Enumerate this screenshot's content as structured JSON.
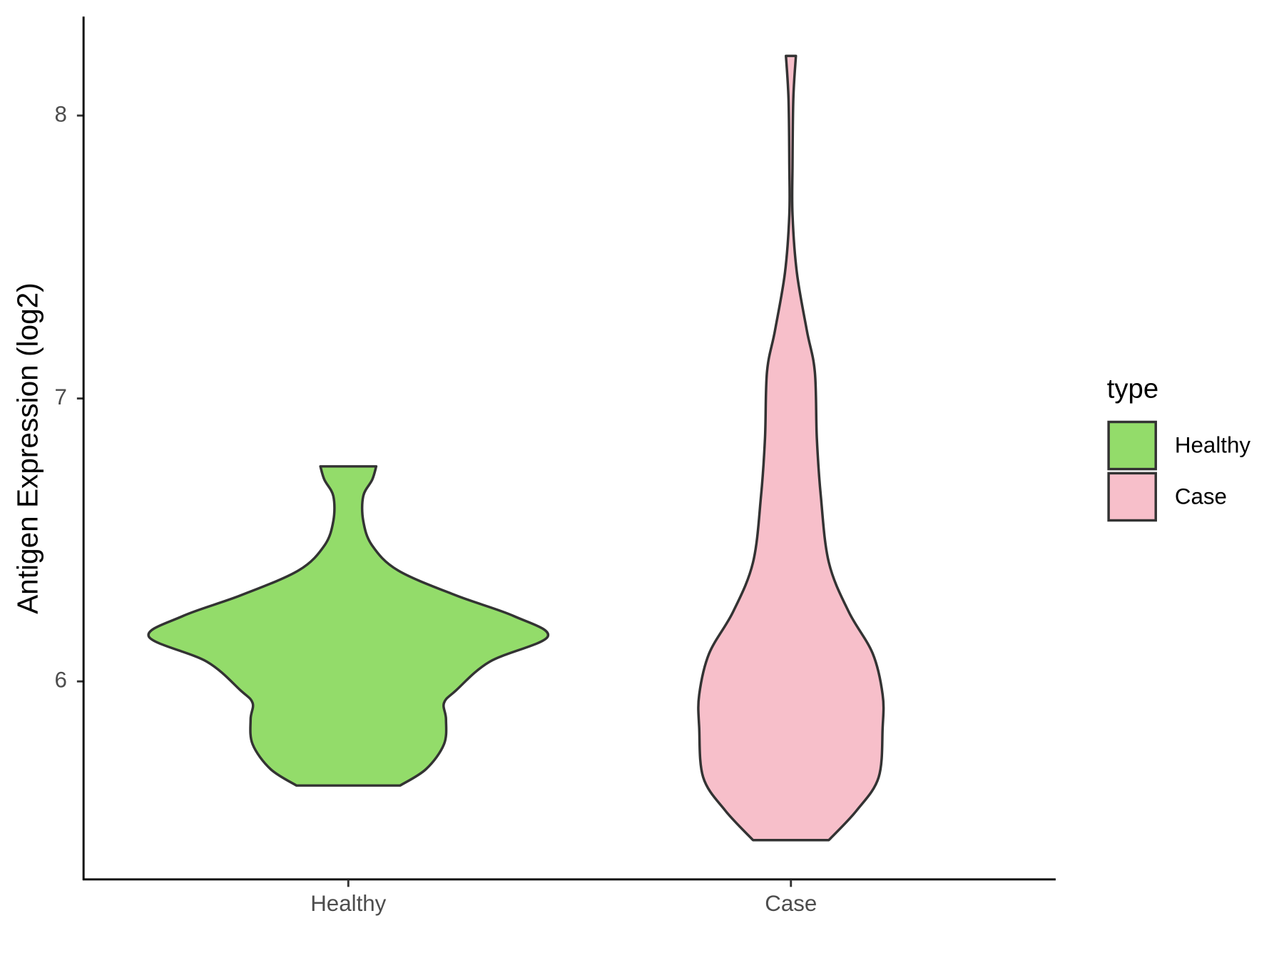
{
  "chart_data": {
    "type": "violin",
    "y_label": "Antigen Expression (log2)",
    "categories": [
      "Healthy",
      "Case"
    ],
    "ylim": [
      5.3,
      8.35
    ],
    "yticks": [
      6,
      7,
      8
    ],
    "legend_title": "type",
    "legend_position": "right",
    "series": [
      {
        "name": "Healthy",
        "color": "#93dc6a",
        "y": [
          5.632,
          5.69,
          5.778,
          5.866,
          5.924,
          5.968,
          6.07,
          6.158,
          6.231,
          6.304,
          6.392,
          6.48,
          6.567,
          6.655,
          6.713,
          6.76
        ],
        "density": [
          0.26,
          0.39,
          0.48,
          0.49,
          0.48,
          0.54,
          0.71,
          1.0,
          0.83,
          0.54,
          0.25,
          0.12,
          0.075,
          0.075,
          0.12,
          0.14
        ]
      },
      {
        "name": "Case",
        "color": "#f7bfca",
        "y": [
          5.439,
          5.544,
          5.661,
          5.836,
          5.953,
          6.099,
          6.246,
          6.421,
          6.655,
          6.86,
          7.094,
          7.24,
          7.444,
          7.649,
          7.825,
          8.058,
          8.211
        ],
        "density": [
          0.19,
          0.33,
          0.44,
          0.46,
          0.46,
          0.41,
          0.29,
          0.19,
          0.15,
          0.13,
          0.12,
          0.08,
          0.03,
          0.008,
          0.008,
          0.012,
          0.025
        ]
      }
    ]
  }
}
